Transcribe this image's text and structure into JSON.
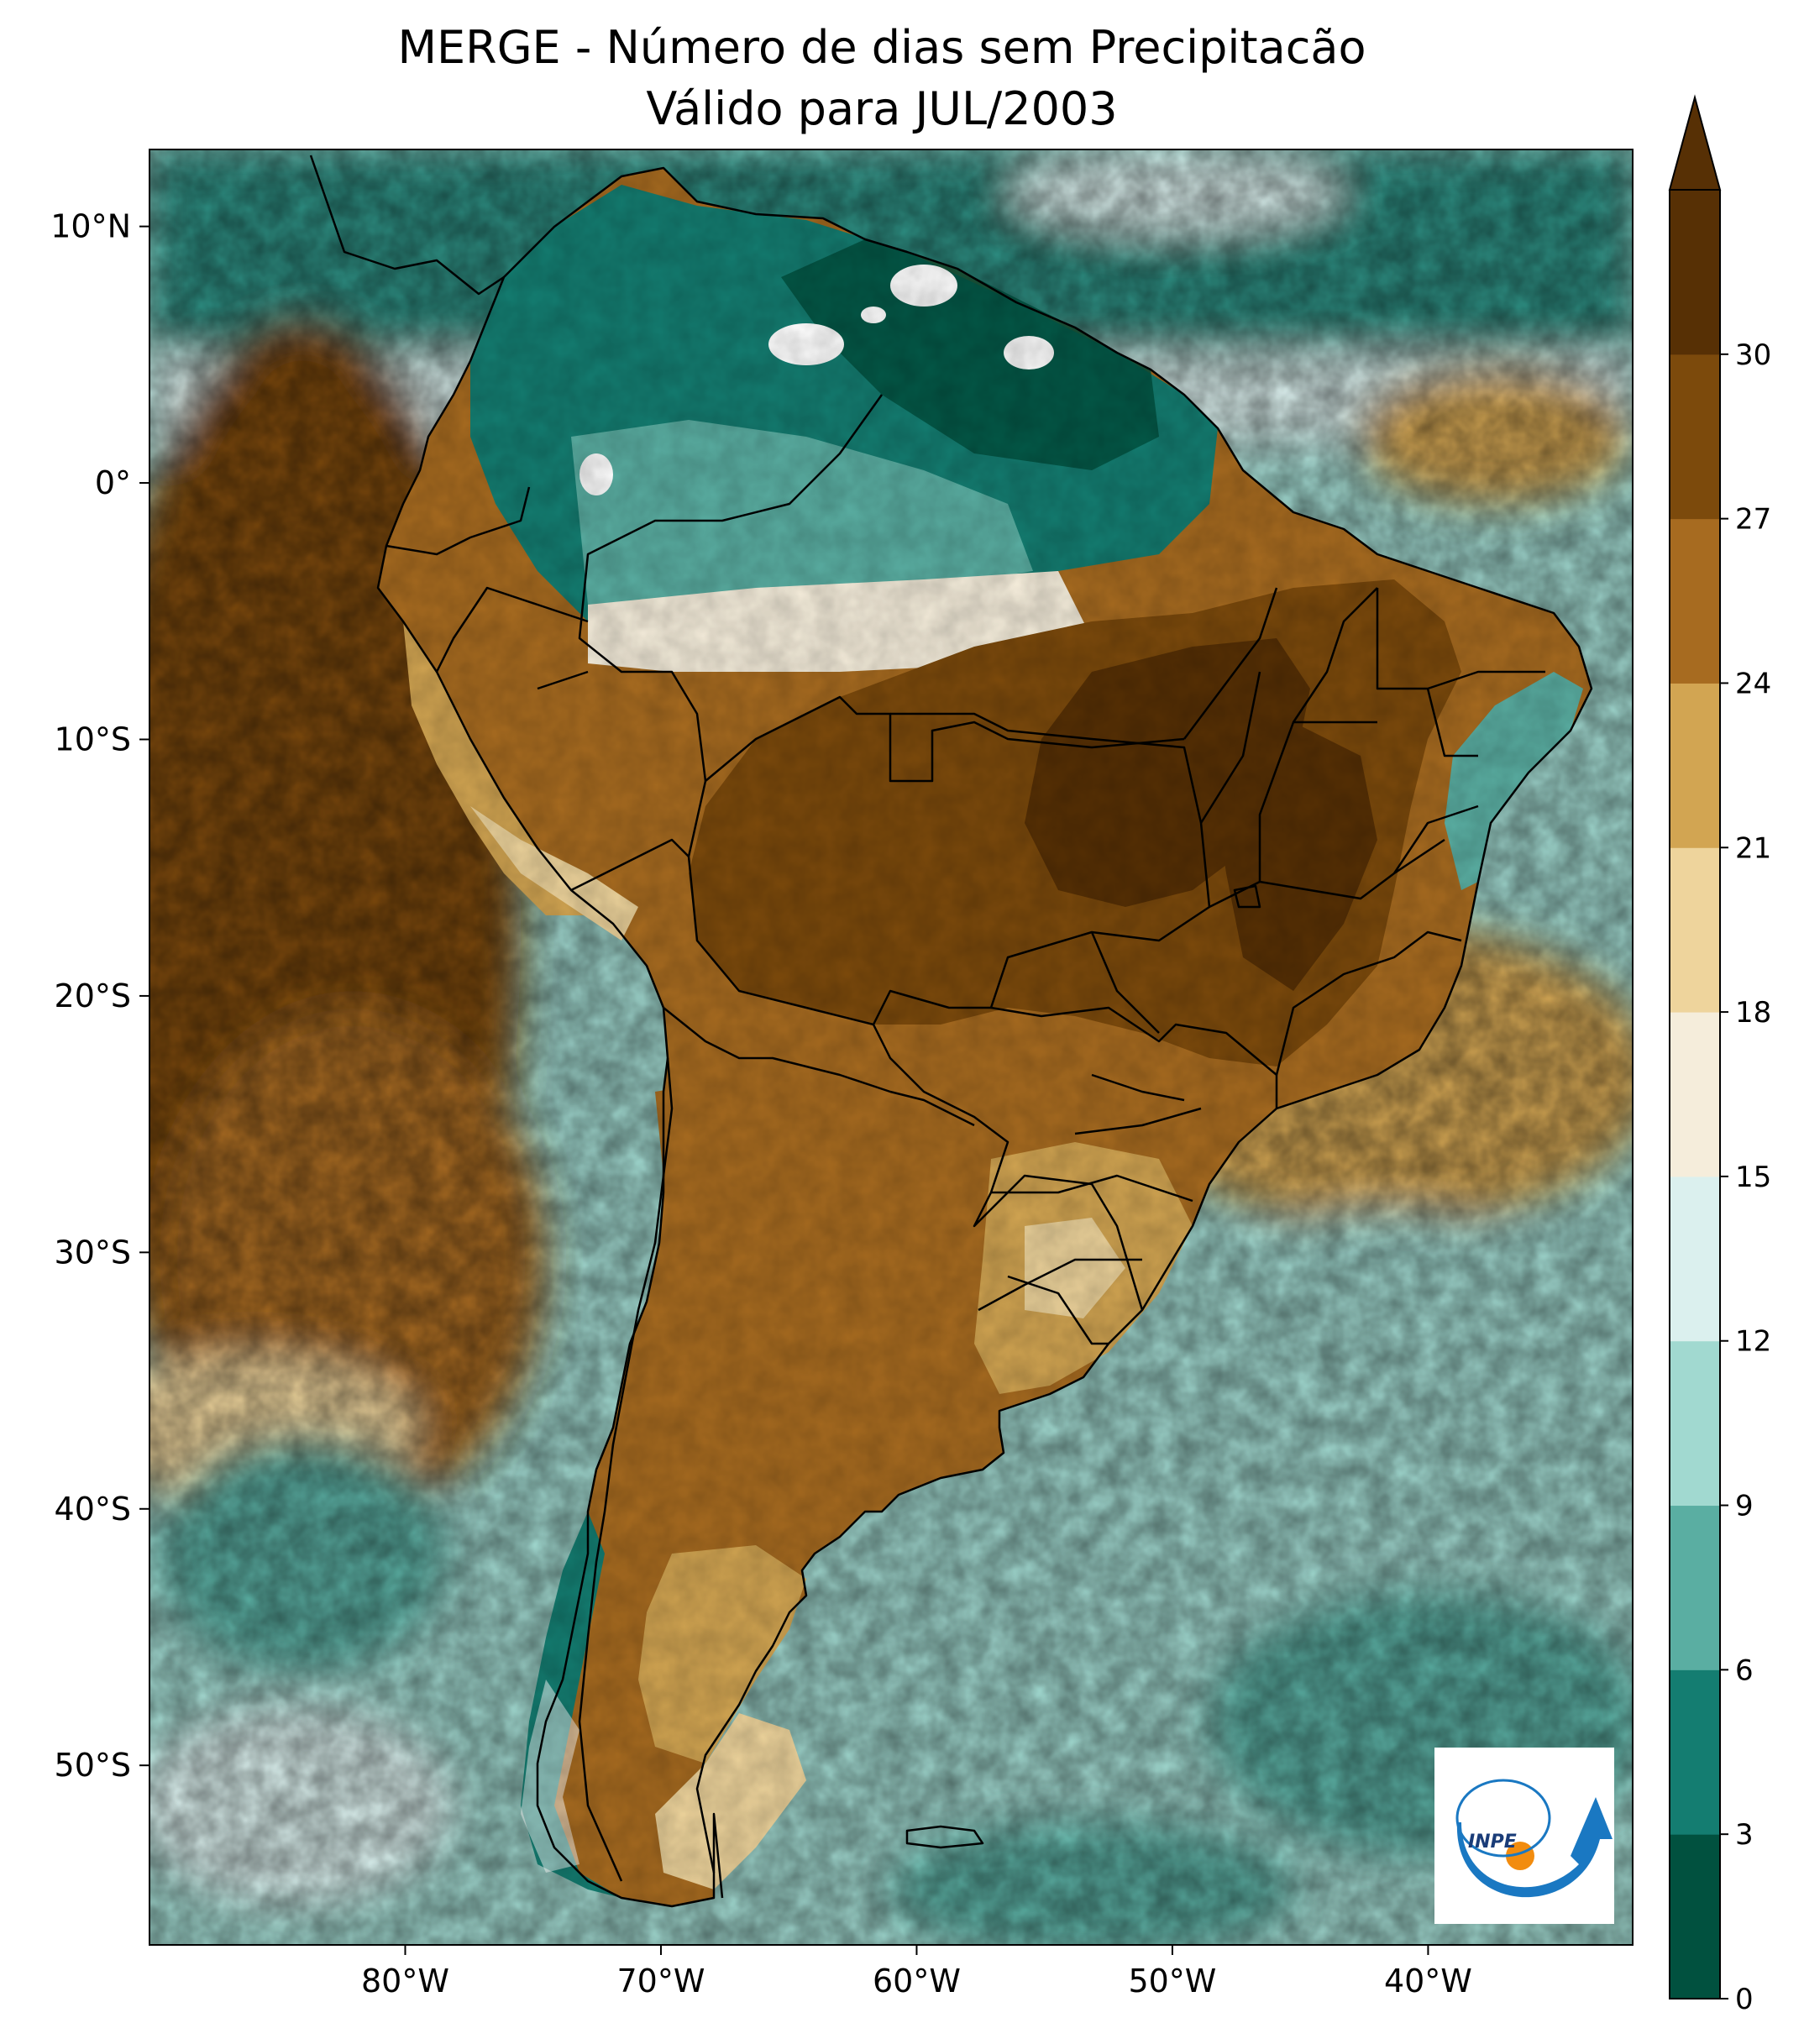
{
  "title": {
    "line1": "MERGE - Número de dias sem Precipitacão",
    "line2": "Válido para JUL/2003"
  },
  "map": {
    "lat_ticks": [
      "10°N",
      "0°",
      "10°S",
      "20°S",
      "30°S",
      "40°S",
      "50°S"
    ],
    "lon_ticks": [
      "80°W",
      "70°W",
      "60°W",
      "50°W",
      "40°W"
    ],
    "extent": {
      "lon": [
        -90,
        -32
      ],
      "lat": [
        -57,
        13
      ]
    }
  },
  "colorbar": {
    "levels": [
      "0",
      "3",
      "6",
      "9",
      "12",
      "15",
      "18",
      "21",
      "24",
      "27",
      "30"
    ],
    "colors": [
      "#01513f",
      "#147d71",
      "#5aaea2",
      "#a1d9d0",
      "#dbf0ee",
      "#f5eddb",
      "#eed49c",
      "#d2a552",
      "#a76b20",
      "#7c4a0c",
      "#573005"
    ],
    "extend": "max"
  },
  "logo": {
    "text": "INPE",
    "colors": {
      "swoosh": "#1a78c2",
      "dot": "#f28c0f"
    }
  }
}
